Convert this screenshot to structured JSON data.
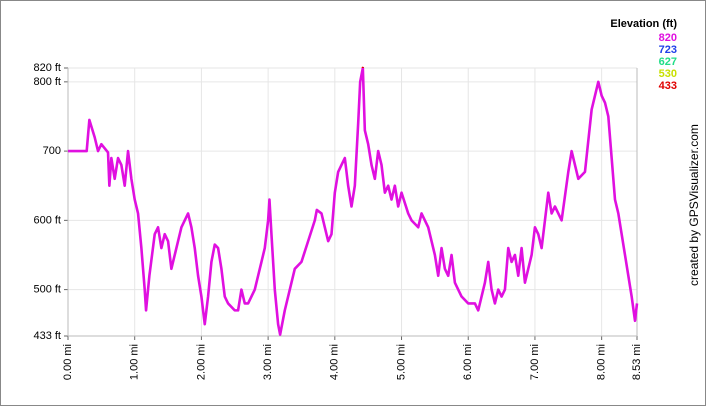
{
  "chart_data": {
    "type": "line",
    "x": [
      0.0,
      0.28,
      0.32,
      0.4,
      0.45,
      0.5,
      0.6,
      0.62,
      0.65,
      0.7,
      0.75,
      0.8,
      0.85,
      0.9,
      0.95,
      1.0,
      1.05,
      1.1,
      1.15,
      1.17,
      1.22,
      1.3,
      1.35,
      1.4,
      1.45,
      1.5,
      1.55,
      1.6,
      1.7,
      1.8,
      1.85,
      1.9,
      1.95,
      2.0,
      2.05,
      2.1,
      2.15,
      2.2,
      2.25,
      2.3,
      2.35,
      2.4,
      2.5,
      2.55,
      2.6,
      2.65,
      2.7,
      2.8,
      2.85,
      2.9,
      2.95,
      3.0,
      3.02,
      3.05,
      3.1,
      3.15,
      3.18,
      3.25,
      3.35,
      3.4,
      3.5,
      3.6,
      3.7,
      3.73,
      3.8,
      3.85,
      3.9,
      3.95,
      4.0,
      4.05,
      4.1,
      4.15,
      4.2,
      4.25,
      4.3,
      4.35,
      4.38,
      4.42,
      4.45,
      4.5,
      4.55,
      4.6,
      4.65,
      4.7,
      4.75,
      4.8,
      4.85,
      4.9,
      4.95,
      5.0,
      5.1,
      5.15,
      5.25,
      5.3,
      5.4,
      5.5,
      5.55,
      5.6,
      5.65,
      5.7,
      5.75,
      5.8,
      5.9,
      6.0,
      6.1,
      6.15,
      6.25,
      6.3,
      6.35,
      6.4,
      6.45,
      6.5,
      6.55,
      6.6,
      6.65,
      6.7,
      6.75,
      6.8,
      6.85,
      6.9,
      6.95,
      7.0,
      7.05,
      7.1,
      7.15,
      7.2,
      7.25,
      7.3,
      7.4,
      7.5,
      7.55,
      7.65,
      7.75,
      7.85,
      7.95,
      8.0,
      8.05,
      8.1,
      8.15,
      8.2,
      8.25,
      8.3,
      8.35,
      8.4,
      8.45,
      8.5,
      8.53
    ],
    "series": [
      {
        "values": [
          700,
          700,
          745,
          720,
          700,
          710,
          698,
          650,
          690,
          660,
          690,
          680,
          650,
          700,
          660,
          630,
          610,
          560,
          500,
          470,
          520,
          580,
          590,
          560,
          580,
          570,
          530,
          550,
          590,
          610,
          590,
          560,
          520,
          490,
          450,
          490,
          540,
          565,
          560,
          530,
          490,
          480,
          470,
          470,
          500,
          480,
          480,
          500,
          520,
          540,
          560,
          600,
          630,
          580,
          500,
          450,
          435,
          470,
          510,
          530,
          540,
          570,
          600,
          615,
          610,
          590,
          570,
          580,
          640,
          670,
          680,
          690,
          650,
          620,
          650,
          740,
          800,
          820,
          730,
          710,
          680,
          660,
          700,
          680,
          640,
          650,
          630,
          650,
          620,
          640,
          610,
          600,
          590,
          610,
          590,
          550,
          520,
          560,
          530,
          520,
          550,
          510,
          490,
          480,
          480,
          470,
          510,
          540,
          500,
          480,
          500,
          490,
          500,
          560,
          540,
          550,
          520,
          560,
          510,
          530,
          550,
          590,
          580,
          560,
          600,
          640,
          610,
          620,
          600,
          670,
          700,
          660,
          670,
          760,
          800,
          780,
          770,
          750,
          690,
          630,
          610,
          580,
          550,
          520,
          490,
          455,
          480
        ]
      }
    ],
    "xlim": [
      0,
      8.53
    ],
    "ylim": [
      433,
      820
    ],
    "xticks": [
      {
        "value": 0,
        "label": "0.00 mi"
      },
      {
        "value": 1,
        "label": "1.00 mi"
      },
      {
        "value": 2,
        "label": "2.00 mi"
      },
      {
        "value": 3,
        "label": "3.00 mi"
      },
      {
        "value": 4,
        "label": "4.00 mi"
      },
      {
        "value": 5,
        "label": "5.00 mi"
      },
      {
        "value": 6,
        "label": "6.00 mi"
      },
      {
        "value": 7,
        "label": "7.00 mi"
      },
      {
        "value": 8,
        "label": "8.00 mi"
      },
      {
        "value": 8.53,
        "label": "8.53 mi"
      }
    ],
    "yticks": [
      {
        "value": 433,
        "label": "433 ft"
      },
      {
        "value": 500,
        "label": "500 ft"
      },
      {
        "value": 600,
        "label": "600 ft"
      },
      700,
      {
        "value": 800,
        "label": "800 ft"
      },
      {
        "value": 820,
        "label": "820 ft"
      }
    ],
    "grid": true,
    "legend": {
      "title": "Elevation (ft)",
      "scale": [
        {
          "value": 820,
          "color": "#e010e0"
        },
        {
          "value": 723,
          "color": "#2040e8"
        },
        {
          "value": 627,
          "color": "#22dd88"
        },
        {
          "value": 530,
          "color": "#c8e000"
        },
        {
          "value": 433,
          "color": "#e00000"
        }
      ]
    },
    "credit": "created by GPSVisualizer.com"
  }
}
